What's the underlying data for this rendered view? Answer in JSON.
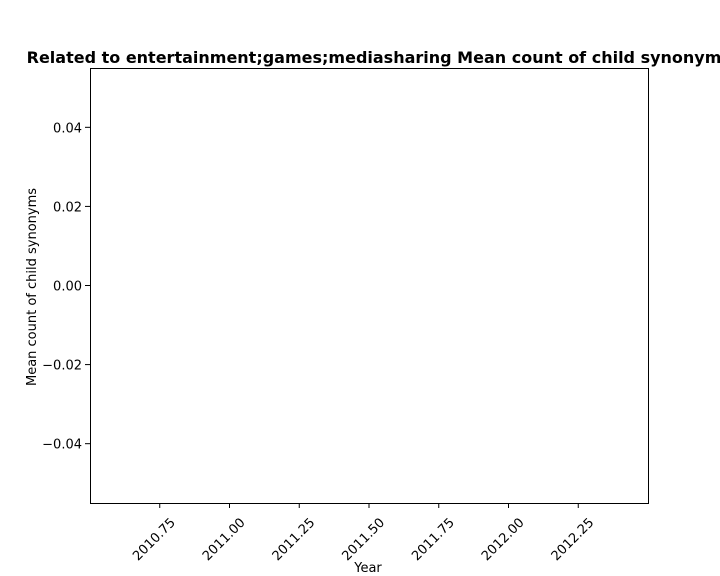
{
  "chart_data": {
    "type": "line",
    "title": "Related to entertainment;games;mediasharing Mean count of child synonyms in",
    "xlabel": "Year",
    "ylabel": "Mean count of child synonyms",
    "xlim": [
      2010.5,
      2012.5
    ],
    "ylim": [
      -0.055,
      0.055
    ],
    "xticks": [
      2010.75,
      2011.0,
      2011.25,
      2011.5,
      2011.75,
      2012.0,
      2012.25
    ],
    "xtick_labels": [
      "2010.75",
      "2011.00",
      "2011.25",
      "2011.50",
      "2011.75",
      "2012.00",
      "2012.25"
    ],
    "yticks": [
      0.04,
      0.02,
      0.0,
      -0.02,
      -0.04
    ],
    "ytick_labels": [
      "0.04",
      "0.02",
      "0.00",
      "−0.02",
      "−0.04"
    ],
    "grid": false,
    "series": []
  }
}
